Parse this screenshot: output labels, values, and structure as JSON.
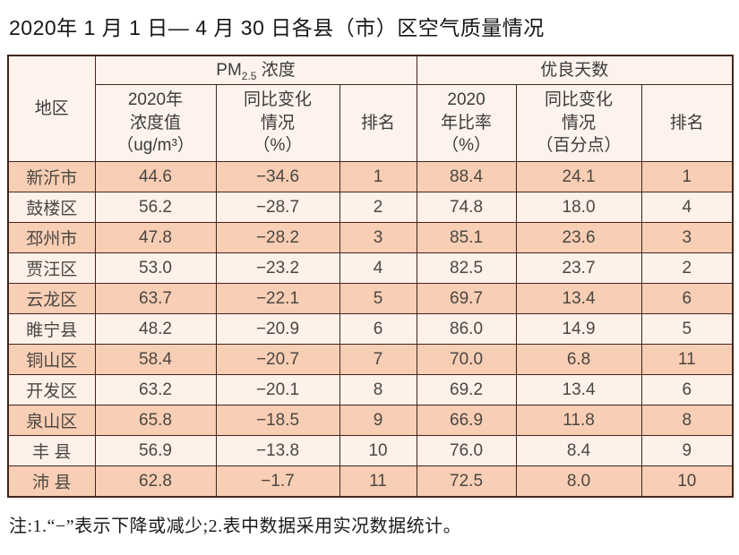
{
  "title": "2020年 1 月 1 日— 4 月 30 日各县（市）区空气质量情况",
  "table": {
    "region_header": "地区",
    "pm_group": {
      "base": "PM",
      "sub": "2.5",
      "rest": " 浓度"
    },
    "good_days_group": "优良天数",
    "sub_headers": {
      "pm_value": "2020年\n浓度值\n（ug/m³）",
      "pm_change": "同比变化\n情况\n（%）",
      "pm_rank": "排名",
      "good_ratio": "2020\n年比率\n（%）",
      "good_change": "同比变化\n情况\n（百分点）",
      "good_rank": "排名"
    },
    "rows": [
      [
        "新沂市",
        "44.6",
        "−34.6",
        "1",
        "88.4",
        "24.1",
        "1"
      ],
      [
        "鼓楼区",
        "56.2",
        "−28.7",
        "2",
        "74.8",
        "18.0",
        "4"
      ],
      [
        "邳州市",
        "47.8",
        "−28.2",
        "3",
        "85.1",
        "23.6",
        "3"
      ],
      [
        "贾汪区",
        "53.0",
        "−23.2",
        "4",
        "82.5",
        "23.7",
        "2"
      ],
      [
        "云龙区",
        "63.7",
        "−22.1",
        "5",
        "69.7",
        "13.4",
        "6"
      ],
      [
        "睢宁县",
        "48.2",
        "−20.9",
        "6",
        "86.0",
        "14.9",
        "5"
      ],
      [
        "铜山区",
        "58.4",
        "−20.7",
        "7",
        "70.0",
        "6.8",
        "11"
      ],
      [
        "开发区",
        "63.2",
        "−20.1",
        "8",
        "69.2",
        "13.4",
        "6"
      ],
      [
        "泉山区",
        "65.8",
        "−18.5",
        "9",
        "66.9",
        "11.8",
        "8"
      ],
      [
        "丰 县",
        "56.9",
        "−13.8",
        "10",
        "76.0",
        "8.4",
        "9"
      ],
      [
        "沛 县",
        "62.8",
        "−1.7",
        "11",
        "72.5",
        "8.0",
        "10"
      ]
    ]
  },
  "note": "注:1.“−”表示下降或减少;2.表中数据采用实况数据统计。",
  "colors": {
    "row_odd_bg": "#f8ceb4",
    "row_even_bg": "#fdf1e9",
    "header_bg": "#fdf2ec",
    "border": "#44251d"
  }
}
